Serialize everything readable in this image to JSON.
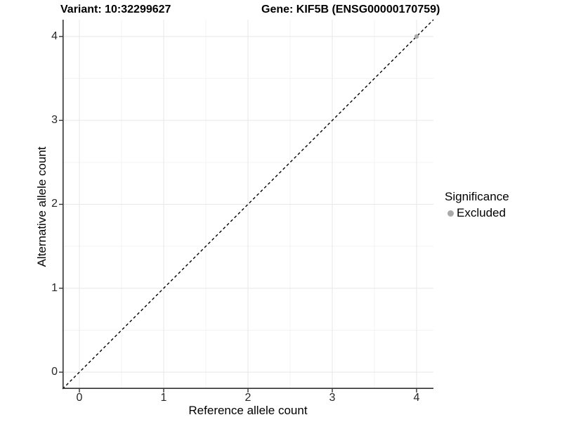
{
  "titles": {
    "variant": "Variant: 10:32299627",
    "gene": "Gene: KIF5B (ENSG00000170759)"
  },
  "axes": {
    "x": {
      "label": "Reference allele count",
      "tick_labels": [
        "0",
        "1",
        "2",
        "3",
        "4"
      ]
    },
    "y": {
      "label": "Alternative allele count",
      "tick_labels": [
        "0",
        "1",
        "2",
        "3",
        "4"
      ]
    }
  },
  "legend": {
    "title": "Significance",
    "items": [
      {
        "label": "Excluded",
        "color": "#aaaaaa"
      }
    ]
  },
  "chart_data": {
    "type": "scatter",
    "title": "Variant: 10:32299627   Gene: KIF5B (ENSG00000170759)",
    "xlabel": "Reference allele count",
    "ylabel": "Alternative allele count",
    "xlim": [
      -0.2,
      4.2
    ],
    "ylim": [
      -0.2,
      4.2
    ],
    "x_ticks": [
      0,
      1,
      2,
      3,
      4
    ],
    "y_ticks": [
      0,
      1,
      2,
      3,
      4
    ],
    "x_minor_ticks": [
      0.5,
      1.5,
      2.5,
      3.5
    ],
    "y_minor_ticks": [
      0.5,
      1.5,
      2.5,
      3.5
    ],
    "grid": true,
    "legend_position": "right",
    "series": [
      {
        "name": "Excluded",
        "color": "#aaaaaa",
        "points": [
          {
            "x": 4,
            "y": 4
          }
        ]
      }
    ],
    "reference_line": {
      "slope": 1,
      "intercept": 0,
      "style": "dashed",
      "color": "#000000"
    },
    "colors": {
      "grid_major": "#e7e7e7",
      "grid_minor": "#f3f3f3",
      "axis_line": "#333333",
      "point": "#aaaaaa",
      "background": "#ffffff"
    }
  }
}
